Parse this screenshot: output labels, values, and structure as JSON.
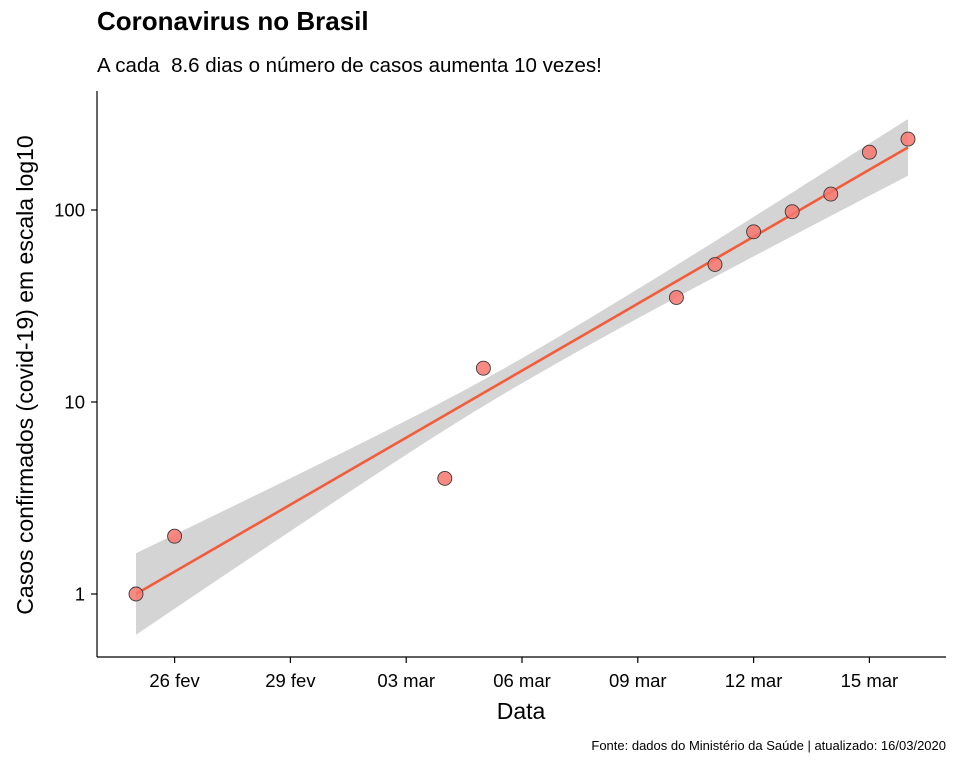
{
  "chart_data": {
    "type": "scatter",
    "title": "Coronavirus no Brasil",
    "subtitle": "A cada  8.6 dias o número de casos aumenta 10 vezes!",
    "xlabel": "Data",
    "ylabel": "Casos confirmados (covid-19) em escala log10",
    "caption": "Fonte: dados do Ministério da Saúde | atualizado: 16/03/2020",
    "y_scale": "log10",
    "x_ticks": [
      "26 fev",
      "29 fev",
      "03 mar",
      "06 mar",
      "09 mar",
      "12 mar",
      "15 mar"
    ],
    "y_ticks": [
      "1",
      "10",
      "100"
    ],
    "x": [
      "2020-02-25",
      "2020-02-26",
      "2020-03-04",
      "2020-03-05",
      "2020-03-10",
      "2020-03-11",
      "2020-03-12",
      "2020-03-13",
      "2020-03-14",
      "2020-03-15",
      "2020-03-16"
    ],
    "y": [
      1,
      2,
      4,
      15,
      35,
      52,
      77,
      98,
      121,
      200,
      234
    ],
    "fit": {
      "x": [
        "2020-02-25",
        "2020-03-16"
      ],
      "y": [
        1.0,
        212
      ],
      "ci_lower": [
        0.63,
        149
      ],
      "ci_upper": [
        1.63,
        298
      ]
    },
    "grid": false,
    "legend": "none",
    "colors": {
      "points": "#F8766D",
      "fit_line": "#F25C3B",
      "ci_band": "#D4D4D4"
    }
  }
}
